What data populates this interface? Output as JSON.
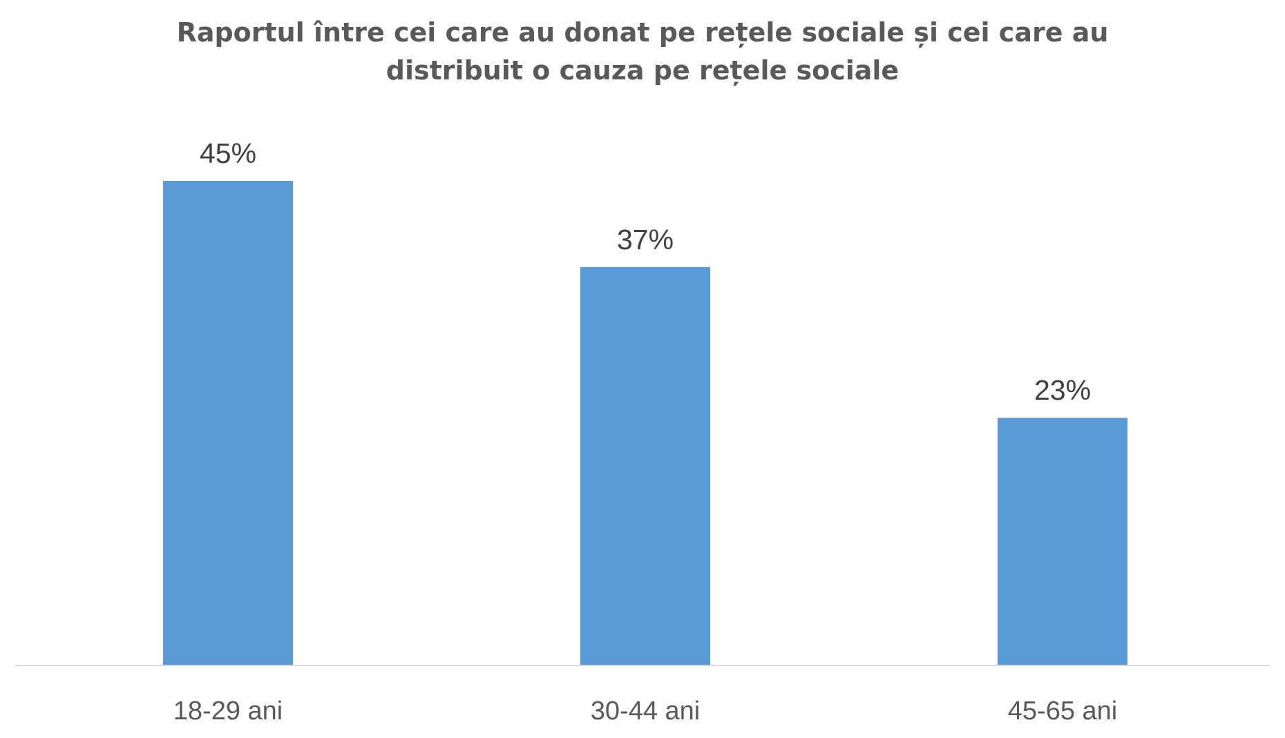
{
  "chart_data": {
    "type": "bar",
    "title_lines": [
      "Raportul între cei care au donat pe rețele sociale și cei care au",
      "distribuit o cauza pe rețele sociale"
    ],
    "categories": [
      "18-29 ani",
      "30-44 ani",
      "45-65 ani"
    ],
    "values": [
      45,
      37,
      23
    ],
    "data_labels": [
      "45%",
      "37%",
      "23%"
    ],
    "ylim": [
      0,
      50
    ],
    "grid": false,
    "bar_color": "#5b9bd5",
    "axis_color": "#d9d9d9"
  }
}
